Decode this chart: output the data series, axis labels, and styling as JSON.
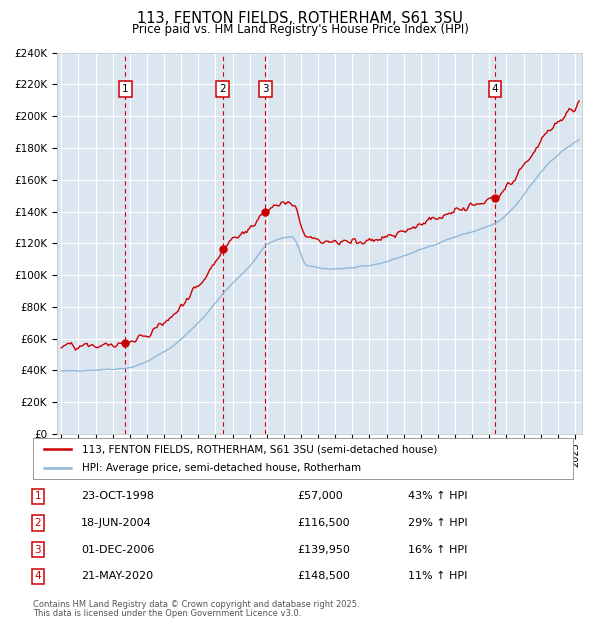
{
  "title": "113, FENTON FIELDS, ROTHERHAM, S61 3SU",
  "subtitle": "Price paid vs. HM Land Registry's House Price Index (HPI)",
  "legend_line1": "113, FENTON FIELDS, ROTHERHAM, S61 3SU (semi-detached house)",
  "legend_line2": "HPI: Average price, semi-detached house, Rotherham",
  "footer_line1": "Contains HM Land Registry data © Crown copyright and database right 2025.",
  "footer_line2": "This data is licensed under the Open Government Licence v3.0.",
  "sales": [
    {
      "num": 1,
      "date": "23-OCT-1998",
      "price": 57000,
      "pct": "43%",
      "dir": "↑"
    },
    {
      "num": 2,
      "date": "18-JUN-2004",
      "price": 116500,
      "pct": "29%",
      "dir": "↑"
    },
    {
      "num": 3,
      "date": "01-DEC-2006",
      "price": 139950,
      "pct": "16%",
      "dir": "↑"
    },
    {
      "num": 4,
      "date": "21-MAY-2020",
      "price": 148500,
      "pct": "11%",
      "dir": "↑"
    }
  ],
  "ylim": [
    0,
    240000
  ],
  "yticks": [
    0,
    20000,
    40000,
    60000,
    80000,
    100000,
    120000,
    140000,
    160000,
    180000,
    200000,
    220000,
    240000
  ],
  "bg_color": "#dce6f1",
  "red_color": "#cc0000",
  "blue_color": "#92b8d8",
  "grid_color": "#ffffff",
  "vline_color": "#cc0000",
  "box_color": "#cc0000"
}
